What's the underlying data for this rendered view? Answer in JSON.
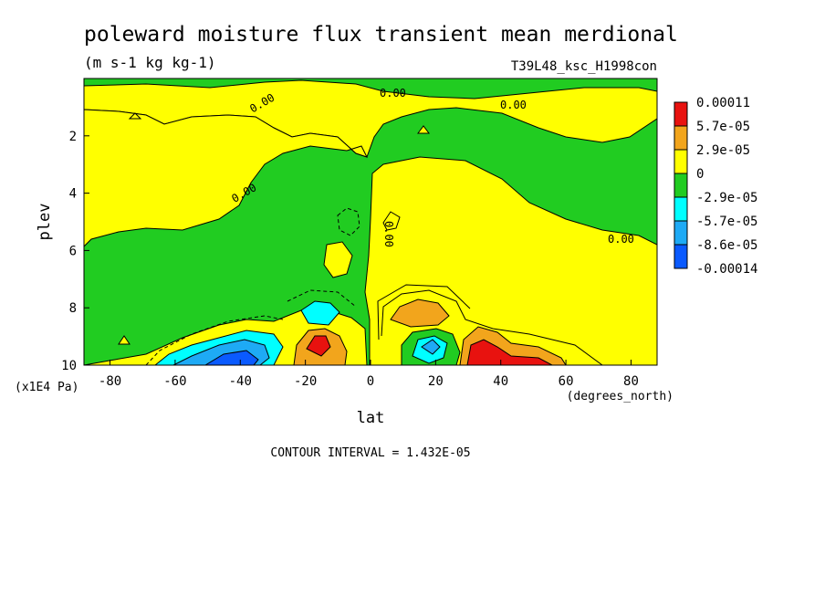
{
  "chart_data": {
    "type": "contour",
    "title": "poleward moisture flux transient mean merdional",
    "units": "(m s-1 kg kg-1)",
    "run_label": "T39L48_ksc_H1998con",
    "xlabel": "lat",
    "ylabel": "plev",
    "x_units": "(degrees_north)",
    "y_units": "(x1E4 Pa)",
    "xlim": [
      -88,
      88
    ],
    "ylim": [
      0,
      10
    ],
    "x_ticks": [
      -80,
      -60,
      -40,
      -20,
      0,
      20,
      40,
      60,
      80
    ],
    "x_tick_labels": [
      "-80",
      "-60",
      "-40",
      "-20",
      "0",
      "20",
      "40",
      "60",
      "80"
    ],
    "y_ticks": [
      2,
      4,
      6,
      8,
      10
    ],
    "y_tick_labels": [
      "2",
      "4",
      "6",
      "8",
      "10"
    ],
    "contour_interval_text": "CONTOUR INTERVAL = 1.432E-05",
    "contour_labels": [
      "0.00",
      "0.00",
      "0.00",
      "0.00",
      "0.00",
      "0.00"
    ],
    "legend": [
      {
        "label": "0.00011",
        "color": "#e8120f"
      },
      {
        "label": "5.7e-05",
        "color": "#f2a51c"
      },
      {
        "label": "2.9e-05",
        "color": "#ffff00"
      },
      {
        "label": "0",
        "color": "#21cc21"
      },
      {
        "label": "-2.9e-05",
        "color": "#00ffff"
      },
      {
        "label": "-5.7e-05",
        "color": "#1eaaf5"
      },
      {
        "label": "-8.6e-05",
        "color": "#0a5aff"
      },
      {
        "label": "-0.00014",
        "color": ""
      }
    ],
    "regions": [
      {
        "level": "positive_yellow",
        "x": [
          -88,
          88
        ],
        "y": [
          0.2,
          10
        ]
      },
      {
        "level": "max_red",
        "lat": 32,
        "plev": 9.6,
        "value_range": "5.7e-05 to 0.00011"
      },
      {
        "level": "orange",
        "lat": 17,
        "plev": 8.3
      },
      {
        "level": "red_core",
        "lat": -18,
        "plev": 9.3
      },
      {
        "level": "min_blue",
        "lat": -33,
        "plev": 9.6,
        "value_range": "-8.6e-05 to -0.00014"
      },
      {
        "level": "cyan_blue",
        "lat": 17,
        "plev": 9.4
      }
    ]
  }
}
